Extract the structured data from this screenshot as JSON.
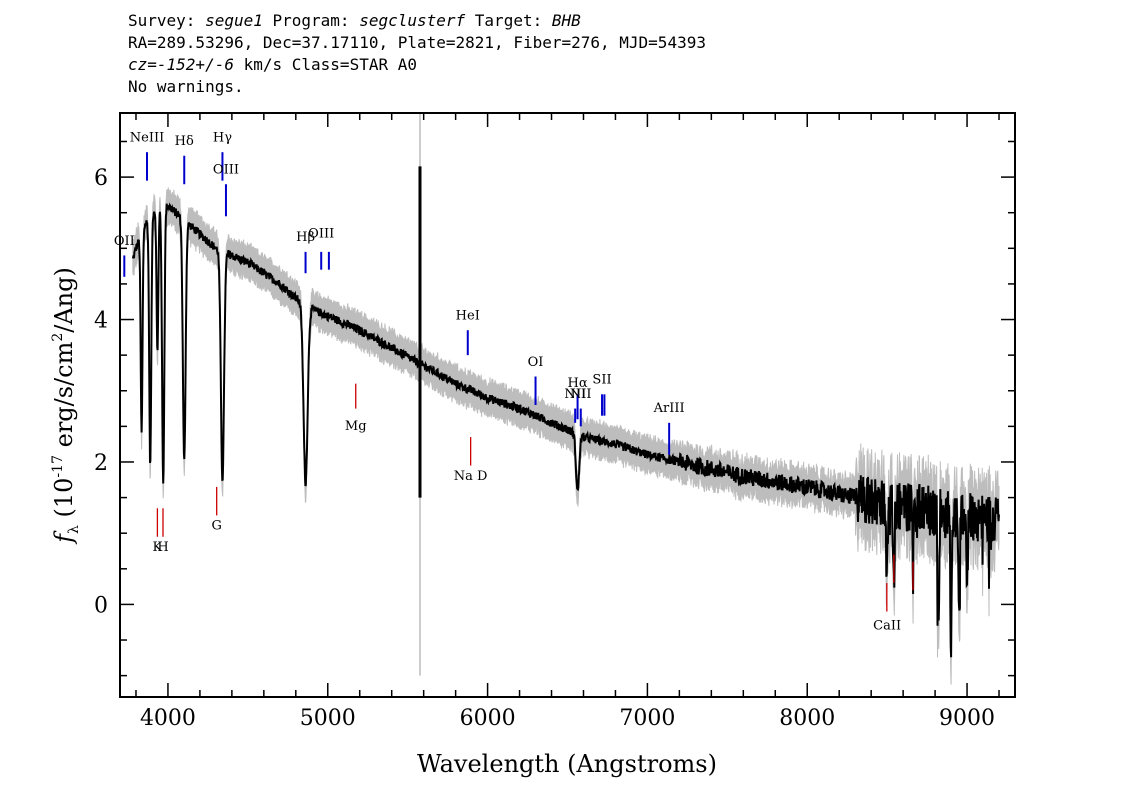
{
  "header": {
    "line1": {
      "survey_label": "Survey: ",
      "survey": "segue1",
      "program_label": " Program: ",
      "program": "segclusterf",
      "target_label": " Target: ",
      "target": "BHB"
    },
    "line2": "RA=289.53296, Dec=37.17110, Plate=2821, Fiber=276, MJD=54393",
    "line3": {
      "cz": "cz=-152+/-6",
      "rest": " km/s Class=STAR A0"
    },
    "line4": "No warnings."
  },
  "chart_data": {
    "type": "line",
    "xlabel": "Wavelength (Angstroms)",
    "ylabel": "f_λ (10^-17 erg/s/cm^2/Ang)",
    "xlim": [
      3700,
      9300
    ],
    "ylim": [
      -1.3,
      6.9
    ],
    "x_ticks": [
      4000,
      5000,
      6000,
      7000,
      8000,
      9000
    ],
    "y_ticks": [
      0,
      2,
      4,
      6
    ],
    "grid": false,
    "colors": {
      "flux": "#000000",
      "error": "#bdbdbd",
      "emission": "#0000cc",
      "absorption": "#cc0000"
    },
    "continuum": [
      [
        3750,
        4.6
      ],
      [
        3800,
        5.0
      ],
      [
        3850,
        5.3
      ],
      [
        3900,
        5.5
      ],
      [
        3950,
        5.6
      ],
      [
        4000,
        5.6
      ],
      [
        4050,
        5.5
      ],
      [
        4100,
        5.4
      ],
      [
        4150,
        5.3
      ],
      [
        4200,
        5.2
      ],
      [
        4250,
        5.1
      ],
      [
        4300,
        5.0
      ],
      [
        4400,
        4.9
      ],
      [
        4500,
        4.8
      ],
      [
        4600,
        4.65
      ],
      [
        4700,
        4.5
      ],
      [
        4800,
        4.3
      ],
      [
        4900,
        4.15
      ],
      [
        5000,
        4.05
      ],
      [
        5200,
        3.85
      ],
      [
        5400,
        3.6
      ],
      [
        5600,
        3.35
      ],
      [
        5800,
        3.1
      ],
      [
        6000,
        2.9
      ],
      [
        6200,
        2.75
      ],
      [
        6400,
        2.55
      ],
      [
        6600,
        2.35
      ],
      [
        6800,
        2.25
      ],
      [
        7000,
        2.1
      ],
      [
        7200,
        2.0
      ],
      [
        7400,
        1.9
      ],
      [
        7600,
        1.8
      ],
      [
        7800,
        1.72
      ],
      [
        8000,
        1.65
      ],
      [
        8200,
        1.55
      ],
      [
        8400,
        1.45
      ],
      [
        8600,
        1.38
      ],
      [
        8800,
        1.3
      ],
      [
        9000,
        1.25
      ],
      [
        9200,
        1.2
      ]
    ],
    "absorption_features": [
      [
        3835,
        2.8,
        8
      ],
      [
        3889,
        3.5,
        9
      ],
      [
        3934,
        2.0,
        8
      ],
      [
        3970,
        3.9,
        10
      ],
      [
        4102,
        3.4,
        12
      ],
      [
        4341,
        3.2,
        14
      ],
      [
        4861,
        2.5,
        18
      ],
      [
        6563,
        0.8,
        14
      ],
      [
        8498,
        1.0,
        6
      ],
      [
        8542,
        1.1,
        6
      ],
      [
        8662,
        0.7,
        6
      ],
      [
        8820,
        1.6,
        6
      ],
      [
        8900,
        1.9,
        6
      ],
      [
        8950,
        1.6,
        5
      ],
      [
        9000,
        1.2,
        5
      ]
    ],
    "spike": {
      "x": 5577,
      "ymin": 1.5,
      "ymax": 6.15
    },
    "emission_lines": [
      {
        "label": "OII",
        "x": 3727,
        "label_y": 5.05,
        "tick_top": 4.9,
        "tick_bottom": 4.6
      },
      {
        "label": "NeIII",
        "x": 3869,
        "label_y": 6.5,
        "tick_top": 6.35,
        "tick_bottom": 5.95
      },
      {
        "label": "Hδ",
        "x": 4102,
        "label_y": 6.45,
        "tick_top": 6.3,
        "tick_bottom": 5.9
      },
      {
        "label": "Hγ",
        "x": 4341,
        "label_y": 6.5,
        "tick_top": 6.35,
        "tick_bottom": 5.95
      },
      {
        "label": "OIII",
        "x": 4363,
        "label_y": 6.05,
        "tick_top": 5.9,
        "tick_bottom": 5.45
      },
      {
        "label": "Hβ",
        "x": 4861,
        "label_y": 5.1,
        "tick_top": 4.95,
        "tick_bottom": 4.65
      },
      {
        "label": "OIII",
        "x": 4959,
        "label_y": 5.15,
        "tick_top": 4.95,
        "tick_bottom": 4.7
      },
      {
        "label": "",
        "x": 5007,
        "label_y": 0,
        "tick_top": 4.95,
        "tick_bottom": 4.7
      },
      {
        "label": "HeI",
        "x": 5876,
        "label_y": 4.0,
        "tick_top": 3.85,
        "tick_bottom": 3.5
      },
      {
        "label": "OI",
        "x": 6300,
        "label_y": 3.35,
        "tick_top": 3.2,
        "tick_bottom": 2.8
      },
      {
        "label": "NII",
        "x": 6548,
        "label_y": 2.9,
        "tick_top": 2.75,
        "tick_bottom": 2.55
      },
      {
        "label": "Hα",
        "x": 6563,
        "label_y": 3.05,
        "tick_top": 2.95,
        "tick_bottom": 2.6
      },
      {
        "label": "NII",
        "x": 6583,
        "label_y": 2.9,
        "tick_top": 2.75,
        "tick_bottom": 2.5
      },
      {
        "label": "SII",
        "x": 6716,
        "label_y": 3.1,
        "tick_top": 2.95,
        "tick_bottom": 2.65
      },
      {
        "label": "",
        "x": 6731,
        "label_y": 0,
        "tick_top": 2.95,
        "tick_bottom": 2.65
      },
      {
        "label": "ArIII",
        "x": 7136,
        "label_y": 2.7,
        "tick_top": 2.55,
        "tick_bottom": 2.1
      }
    ],
    "absorption_lines": [
      {
        "label": "K",
        "x": 3934,
        "label_y": 0.75,
        "tick_top": 1.35,
        "tick_bottom": 0.95
      },
      {
        "label": "H",
        "x": 3969,
        "label_y": 0.75,
        "tick_top": 1.35,
        "tick_bottom": 0.95
      },
      {
        "label": "G",
        "x": 4305,
        "label_y": 1.05,
        "tick_top": 1.65,
        "tick_bottom": 1.25
      },
      {
        "label": "Mg",
        "x": 5175,
        "label_y": 2.45,
        "tick_top": 3.1,
        "tick_bottom": 2.75
      },
      {
        "label": "Na D",
        "x": 5894,
        "label_y": 1.75,
        "tick_top": 2.35,
        "tick_bottom": 1.95
      },
      {
        "label": "",
        "x": 8498,
        "label_y": 0,
        "tick_top": 0.3,
        "tick_bottom": -0.1
      },
      {
        "label": "",
        "x": 8542,
        "label_y": 0,
        "tick_top": 0.7,
        "tick_bottom": 0.3
      },
      {
        "label": "CaII",
        "x": 8500,
        "label_y": -0.35,
        "tick_top": 0,
        "tick_bottom": 0
      },
      {
        "label": "",
        "x": 8662,
        "label_y": 0,
        "tick_top": 0.6,
        "tick_bottom": 0.2
      }
    ]
  }
}
